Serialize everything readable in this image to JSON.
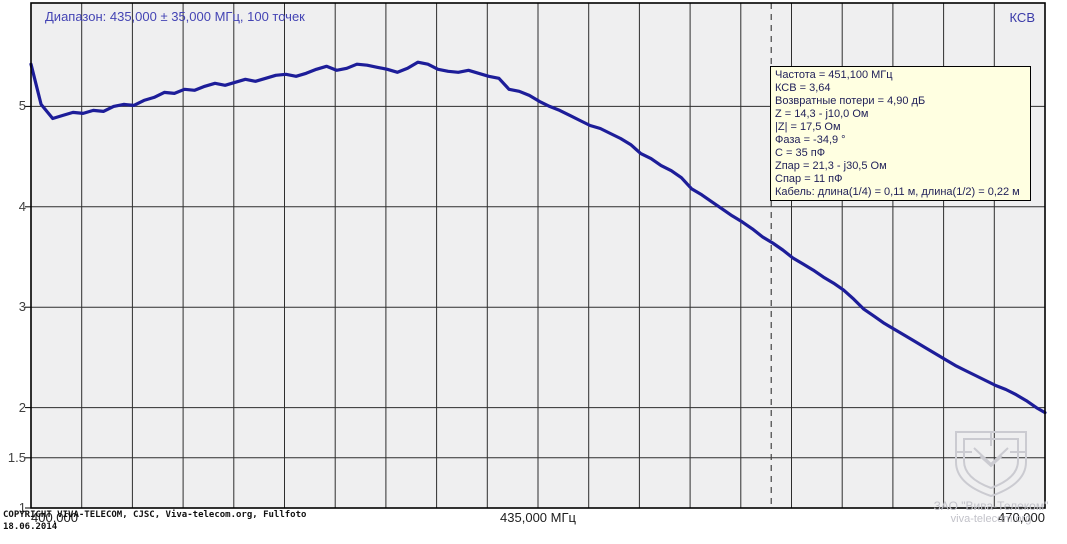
{
  "colors": {
    "plot_background": "#efeff0",
    "page_background": "#ffffff",
    "grid_line": "#2e2e2e",
    "plot_border": "#000000",
    "curve": "#1d1d99",
    "cursor_line": "#444444",
    "title_text": "#4444b4",
    "infobox_background": "#ffffe1",
    "infobox_text": "#22225a",
    "watermark": "#c2c2c9"
  },
  "header": {
    "title": "Диапазон: 435,000 ± 35,000 МГц, 100 точек",
    "series_label": "КСВ"
  },
  "infobox": {
    "lines": [
      "Частота = 451,100 МГц",
      "КСВ = 3,64",
      "Возвратные потери = 4,90 дБ",
      "Z = 14,3 - j10,0 Ом",
      "|Z| = 17,5 Ом",
      "Фаза = -34,9 °",
      "C = 35 пФ",
      "Zпар = 21,3 - j30,5 Ом",
      "Спар = 11 пФ",
      "Кабель: длина(1/4) = 0,11 м, длина(1/2) = 0,22 м"
    ]
  },
  "axis": {
    "x_ticks": [
      {
        "label": "400,000",
        "value": 400
      },
      {
        "label": "435,000 МГц",
        "value": 435
      },
      {
        "label": "470,000",
        "value": 470
      }
    ],
    "y_ticks": [
      {
        "label": "5",
        "value": 5
      },
      {
        "label": "4",
        "value": 4
      },
      {
        "label": "3",
        "value": 3
      },
      {
        "label": "2",
        "value": 2
      },
      {
        "label": "1.5",
        "value": 1.5
      },
      {
        "label": "1",
        "value": 1
      }
    ]
  },
  "footer": {
    "copyright_line1": "COPYRIGHT VIVA-TELECOM, CJSC, Viva-telecom.org, Fullfoto",
    "copyright_line2": "18.06.2014"
  },
  "watermark": {
    "line1": "ЗАО \"Вива-Телеком\"",
    "line2": "viva-telecom.org"
  },
  "chart_data": {
    "type": "line",
    "title": "Диапазон: 435,000 ± 35,000 МГц, 100 точек",
    "ylabel": "КСВ",
    "xlabel": "МГц",
    "xlim": [
      400,
      470
    ],
    "ylim": [
      1,
      6.03
    ],
    "x_grid_step_mhz": 3.5,
    "y_gridlines": [
      1.5,
      2,
      3,
      4,
      5
    ],
    "grid": true,
    "cursor_x_mhz": 451.1,
    "cursor_readout": {
      "freq_mhz": 451.1,
      "vswr": 3.64
    },
    "points_count_label": "100 точек",
    "points": [
      [
        400.0,
        5.42
      ],
      [
        400.7,
        5.02
      ],
      [
        401.5,
        4.88
      ],
      [
        402.2,
        4.91
      ],
      [
        402.9,
        4.94
      ],
      [
        403.6,
        4.93
      ],
      [
        404.3,
        4.96
      ],
      [
        405.0,
        4.95
      ],
      [
        405.7,
        5.0
      ],
      [
        406.4,
        5.02
      ],
      [
        407.1,
        5.01
      ],
      [
        407.8,
        5.06
      ],
      [
        408.5,
        5.09
      ],
      [
        409.2,
        5.14
      ],
      [
        409.9,
        5.13
      ],
      [
        410.6,
        5.17
      ],
      [
        411.3,
        5.16
      ],
      [
        412.0,
        5.2
      ],
      [
        412.7,
        5.23
      ],
      [
        413.4,
        5.21
      ],
      [
        414.1,
        5.24
      ],
      [
        414.8,
        5.27
      ],
      [
        415.5,
        5.25
      ],
      [
        416.2,
        5.28
      ],
      [
        416.9,
        5.31
      ],
      [
        417.6,
        5.32
      ],
      [
        418.3,
        5.3
      ],
      [
        419.0,
        5.33
      ],
      [
        419.7,
        5.37
      ],
      [
        420.4,
        5.4
      ],
      [
        421.1,
        5.36
      ],
      [
        421.8,
        5.38
      ],
      [
        422.5,
        5.42
      ],
      [
        423.2,
        5.41
      ],
      [
        423.9,
        5.39
      ],
      [
        424.6,
        5.37
      ],
      [
        425.3,
        5.34
      ],
      [
        426.0,
        5.38
      ],
      [
        426.7,
        5.44
      ],
      [
        427.4,
        5.42
      ],
      [
        428.1,
        5.37
      ],
      [
        428.8,
        5.35
      ],
      [
        429.5,
        5.34
      ],
      [
        430.2,
        5.36
      ],
      [
        430.9,
        5.33
      ],
      [
        431.6,
        5.3
      ],
      [
        432.3,
        5.28
      ],
      [
        433.0,
        5.17
      ],
      [
        433.7,
        5.15
      ],
      [
        434.4,
        5.11
      ],
      [
        435.1,
        5.05
      ],
      [
        435.8,
        5.0
      ],
      [
        436.5,
        4.96
      ],
      [
        437.2,
        4.91
      ],
      [
        437.9,
        4.86
      ],
      [
        438.6,
        4.81
      ],
      [
        439.3,
        4.78
      ],
      [
        440.0,
        4.73
      ],
      [
        440.7,
        4.68
      ],
      [
        441.4,
        4.62
      ],
      [
        442.1,
        4.53
      ],
      [
        442.8,
        4.48
      ],
      [
        443.5,
        4.41
      ],
      [
        444.2,
        4.36
      ],
      [
        444.9,
        4.29
      ],
      [
        445.6,
        4.18
      ],
      [
        446.3,
        4.12
      ],
      [
        447.0,
        4.05
      ],
      [
        447.7,
        3.98
      ],
      [
        448.4,
        3.91
      ],
      [
        449.1,
        3.85
      ],
      [
        449.8,
        3.78
      ],
      [
        450.5,
        3.7
      ],
      [
        451.2,
        3.64
      ],
      [
        451.9,
        3.57
      ],
      [
        452.6,
        3.49
      ],
      [
        453.3,
        3.43
      ],
      [
        454.0,
        3.37
      ],
      [
        454.7,
        3.3
      ],
      [
        455.4,
        3.24
      ],
      [
        456.1,
        3.17
      ],
      [
        456.8,
        3.08
      ],
      [
        457.5,
        2.98
      ],
      [
        458.2,
        2.91
      ],
      [
        458.9,
        2.84
      ],
      [
        459.6,
        2.78
      ],
      [
        460.3,
        2.72
      ],
      [
        461.0,
        2.66
      ],
      [
        461.7,
        2.6
      ],
      [
        462.4,
        2.54
      ],
      [
        463.1,
        2.48
      ],
      [
        463.8,
        2.42
      ],
      [
        464.5,
        2.37
      ],
      [
        465.2,
        2.32
      ],
      [
        465.9,
        2.27
      ],
      [
        466.6,
        2.22
      ],
      [
        467.3,
        2.18
      ],
      [
        468.0,
        2.13
      ],
      [
        468.7,
        2.07
      ],
      [
        469.4,
        2.0
      ],
      [
        470.0,
        1.95
      ]
    ]
  }
}
